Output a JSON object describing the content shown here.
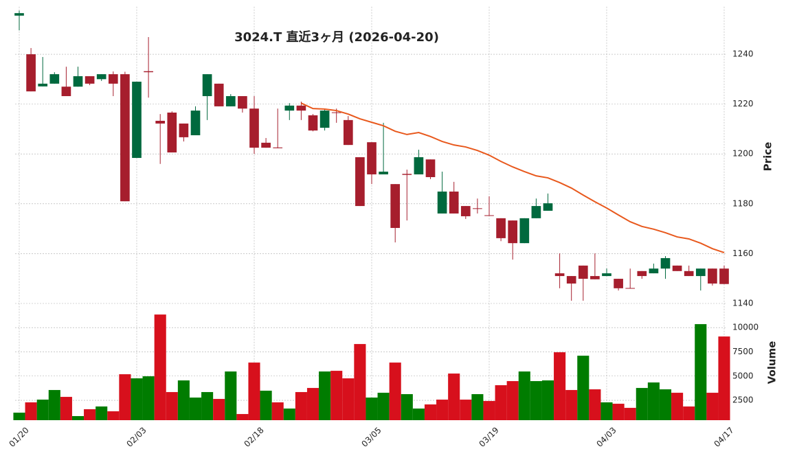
{
  "chart_data": {
    "type": "candlestick",
    "title": "3024.T  直近3ヶ月  (2026-04-20)",
    "ylabel": "Price",
    "categories": [
      "01/20",
      null,
      null,
      null,
      null,
      null,
      null,
      null,
      null,
      null,
      "02/03",
      null,
      null,
      null,
      null,
      null,
      null,
      null,
      null,
      null,
      "02/18",
      null,
      null,
      null,
      null,
      null,
      null,
      null,
      null,
      null,
      "03/05",
      null,
      null,
      null,
      null,
      null,
      null,
      null,
      null,
      null,
      "03/19",
      null,
      null,
      null,
      null,
      null,
      null,
      null,
      null,
      null,
      "04/03",
      null,
      null,
      null,
      null,
      null,
      null,
      null,
      null,
      null,
      "04/17"
    ],
    "open": [
      1255.5,
      1240,
      1227.1,
      1228.2,
      1227,
      1227,
      1231.2,
      1230,
      1232,
      1232,
      1198.4,
      1233.2,
      1213.3,
      1216.6,
      1212.2,
      1207.5,
      1223.2,
      1228.2,
      1219.1,
      1223.2,
      1218.2,
      1204.5,
      1202.6,
      1217.4,
      1219.4,
      1215.5,
      1210.5,
      1216.7,
      1213.6,
      1198.7,
      1204.7,
      1191.8,
      1187.9,
      1192,
      1191.8,
      1197.8,
      1176.1,
      1184.9,
      1179.1,
      1178.2,
      1175.4,
      1174.2,
      1173.3,
      1164.2,
      1174.2,
      1177.2,
      1152.1,
      1151,
      1155.2,
      1151,
      1151,
      1149.9,
      1146.2,
      1153,
      1152.1,
      1154,
      1155.2,
      1153,
      1151,
      1154,
      1154
    ],
    "high": [
      1257.5,
      1242.5,
      1238.9,
      1232.8,
      1235,
      1235,
      1231.2,
      1232,
      1233.1,
      1233,
      1229,
      1246.9,
      1216,
      1217.1,
      1212.2,
      1219.1,
      1232,
      1228.2,
      1224,
      1223.2,
      1223.2,
      1206.4,
      1218.2,
      1220.4,
      1221,
      1216,
      1218.2,
      1218.2,
      1215.2,
      1198.7,
      1204.7,
      1212.5,
      1187.9,
      1193.7,
      1201.7,
      1197.8,
      1192.9,
      1188.8,
      1179.1,
      1182.1,
      1183,
      1174.2,
      1173.3,
      1174.2,
      1182.1,
      1184.1,
      1160.1,
      1151,
      1155.2,
      1160.1,
      1154,
      1149.9,
      1154,
      1153,
      1156,
      1159,
      1155.2,
      1155.2,
      1154,
      1154,
      1155.2
    ],
    "low": [
      1249.6,
      1225.1,
      1227.1,
      1228.2,
      1223.2,
      1227,
      1227.6,
      1229.3,
      1223.2,
      1181,
      1198.4,
      1222.6,
      1196,
      1200.6,
      1205,
      1207.5,
      1213.6,
      1219.1,
      1219.1,
      1216.6,
      1200,
      1202.5,
      1202.3,
      1213.6,
      1213.6,
      1209.1,
      1209.4,
      1212.5,
      1203.6,
      1179.1,
      1187.9,
      1191.8,
      1164.5,
      1173.3,
      1191.8,
      1189.9,
      1176.1,
      1176.1,
      1173.9,
      1176.1,
      1175.2,
      1165,
      1157.6,
      1164.2,
      1174.2,
      1177.2,
      1146.1,
      1141.1,
      1141.1,
      1149.7,
      1151,
      1145.2,
      1146,
      1149.9,
      1152.1,
      1149.9,
      1153,
      1151,
      1145.2,
      1147.2,
      1147.8
    ],
    "close": [
      1256.5,
      1225.1,
      1228.2,
      1232,
      1223.2,
      1231.2,
      1228.2,
      1232,
      1228.2,
      1181,
      1229,
      1232.8,
      1212.2,
      1200.6,
      1206.7,
      1217.4,
      1232,
      1219.1,
      1223.2,
      1218.2,
      1202.5,
      1202.5,
      1202.3,
      1219.4,
      1217.4,
      1209.4,
      1217.4,
      1216.5,
      1203.6,
      1179.1,
      1191.8,
      1192.9,
      1170.3,
      1191.6,
      1198.7,
      1190.7,
      1184.9,
      1176.1,
      1175,
      1178,
      1175.2,
      1166.2,
      1164.2,
      1174.2,
      1179.1,
      1180.2,
      1151,
      1148,
      1149.9,
      1149.7,
      1152.1,
      1146.1,
      1146,
      1151,
      1154,
      1158.2,
      1153,
      1151,
      1154,
      1148,
      1147.8
    ],
    "up_color": "#00693e",
    "down_color": "#a61e2d",
    "moving_average": {
      "color": "#e8581c",
      "values": [
        null,
        null,
        null,
        null,
        null,
        null,
        null,
        null,
        null,
        null,
        null,
        null,
        null,
        null,
        null,
        null,
        null,
        null,
        null,
        null,
        null,
        null,
        null,
        null,
        1220.4,
        1218.2,
        1218,
        1217.4,
        1216,
        1214.1,
        1212.7,
        1211.3,
        1209.1,
        1207.8,
        1208.6,
        1207,
        1205,
        1203.6,
        1202.8,
        1201.4,
        1199.5,
        1197,
        1194.8,
        1192.9,
        1191.2,
        1190.4,
        1188.5,
        1186.3,
        1183.5,
        1180.8,
        1178.3,
        1175.5,
        1172.8,
        1170.9,
        1169.8,
        1168.4,
        1166.7,
        1165.9,
        1164.2,
        1162,
        1160.4
      ]
    },
    "ylim": [
      1140,
      1258
    ],
    "yticks": [
      1140,
      1160,
      1180,
      1200,
      1220,
      1240
    ],
    "grid": true,
    "volume": {
      "ylabel": "Volume",
      "up_color": "#007c00",
      "down_color": "#d7101c",
      "values": [
        1226,
        2288,
        2571,
        3562,
        2854,
        872,
        1580,
        1863,
        1367,
        5190,
        4766,
        4978,
        11350,
        3350,
        4553,
        2783,
        3350,
        2642,
        5474,
        1084,
        6394,
        3491,
        2288,
        1650,
        3350,
        3774,
        5474,
        5544,
        4766,
        8306,
        2783,
        3279,
        6394,
        3137,
        1650,
        2075,
        2571,
        5261,
        2571,
        3137,
        2429,
        4058,
        4482,
        5474,
        4482,
        4553,
        7456,
        3562,
        7102,
        3633,
        2288,
        2146,
        1721,
        3774,
        4341,
        3633,
        3279,
        1863,
        10359,
        3279,
        9084
      ],
      "ylim": [
        450,
        12300
      ],
      "yticks": [
        2500,
        5000,
        7500,
        10000
      ]
    }
  }
}
